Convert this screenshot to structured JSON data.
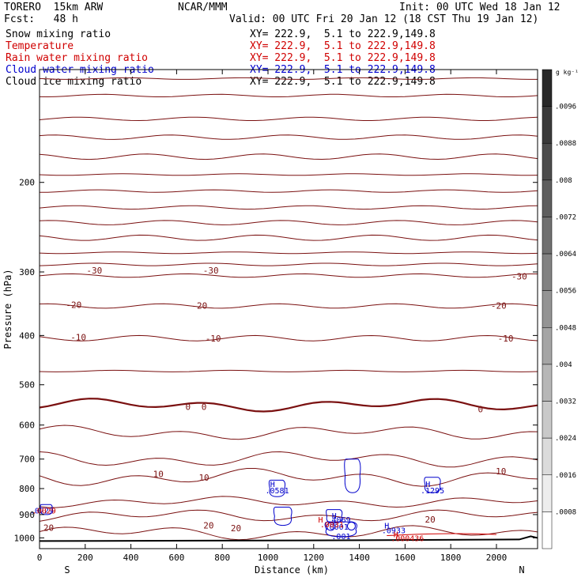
{
  "header": {
    "model": "TORERO  15km ARW",
    "org": "NCAR/MMM",
    "init": "Init: 00 UTC Wed 18 Jan 12",
    "fcst": "Fcst:   48 h",
    "valid": "Valid: 00 UTC Fri 20 Jan 12 (18 CST Thu 19 Jan 12)"
  },
  "fields": [
    {
      "name": "Snow mixing ratio",
      "xy": "XY= 222.9,  5.1 to 222.9,149.8",
      "color": "#000000"
    },
    {
      "name": "Temperature",
      "xy": "XY= 222.9,  5.1 to 222.9,149.8",
      "color": "#d00000"
    },
    {
      "name": "Rain water mixing ratio",
      "xy": "XY= 222.9,  5.1 to 222.9,149.8",
      "color": "#d00000"
    },
    {
      "name": "Cloud water mixing ratio",
      "xy": "XY= 222.9,  5.1 to 222.9,149.8",
      "color": "#0000cc"
    },
    {
      "name": "Cloud ice mixing ratio",
      "xy": "XY= 222.9,  5.1 to 222.9,149.8",
      "color": "#000000"
    }
  ],
  "colorbar": {
    "unit": "g kg⁻¹",
    "labels": [
      ".0096",
      ".0088",
      ".008",
      ".0072",
      ".0064",
      ".0056",
      ".0048",
      ".004",
      ".0032",
      ".0024",
      ".0016",
      ".0008"
    ]
  },
  "chart_data": {
    "type": "contour",
    "xlabel": "Distance (km)",
    "ylabel": "Pressure (hPa)",
    "xlim": [
      0,
      2180
    ],
    "ylim": [
      1050,
      120
    ],
    "y_scale": "log",
    "x_ticks": [
      "0",
      "200",
      "400",
      "600",
      "800",
      "1000",
      "1200",
      "1400",
      "1600",
      "1800",
      "2000"
    ],
    "x_tick_values": [
      0,
      200,
      400,
      600,
      800,
      1000,
      1200,
      1400,
      1600,
      1800,
      2000
    ],
    "y_ticks": [
      "200",
      "300",
      "400",
      "500",
      "600",
      "700",
      "800",
      "900",
      "1000"
    ],
    "y_tick_values": [
      200,
      300,
      400,
      500,
      600,
      700,
      800,
      900,
      1000
    ],
    "x_end_labels": {
      "left": "S",
      "right": "N"
    },
    "isotherm_pressures": [
      125,
      135,
      150,
      163,
      178,
      193,
      208,
      224,
      240,
      257,
      275,
      290,
      305,
      350,
      405,
      470,
      548,
      621,
      700,
      760,
      850,
      905,
      978
    ],
    "temperature_labels": [
      {
        "text": "-30",
        "x": 240,
        "p": 298
      },
      {
        "text": "-30",
        "x": 750,
        "p": 298
      },
      {
        "text": "-30",
        "x": 2100,
        "p": 306
      },
      {
        "text": "-20",
        "x": 150,
        "p": 348
      },
      {
        "text": "-20",
        "x": 700,
        "p": 349
      },
      {
        "text": "-20",
        "x": 2010,
        "p": 349
      },
      {
        "text": "-10",
        "x": 170,
        "p": 403
      },
      {
        "text": "-10",
        "x": 760,
        "p": 405
      },
      {
        "text": "-10",
        "x": 2040,
        "p": 405
      },
      {
        "text": "0",
        "x": 650,
        "p": 552
      },
      {
        "text": "0",
        "x": 720,
        "p": 552
      },
      {
        "text": "0",
        "x": 1930,
        "p": 558
      },
      {
        "text": "10",
        "x": 520,
        "p": 749
      },
      {
        "text": "10",
        "x": 720,
        "p": 761
      },
      {
        "text": "10",
        "x": 2020,
        "p": 740
      },
      {
        "text": "20",
        "x": 40,
        "p": 955
      },
      {
        "text": "20",
        "x": 740,
        "p": 945
      },
      {
        "text": "20",
        "x": 860,
        "p": 956
      },
      {
        "text": "20",
        "x": 1710,
        "p": 920
      }
    ],
    "cloud_water_labels": [
      {
        "text": "H",
        "x": 1020,
        "p": 783
      },
      {
        "text": ".0581",
        "x": 1040,
        "p": 805
      },
      {
        "text": "H",
        "x": 1700,
        "p": 783
      },
      {
        "text": ".1295",
        "x": 1720,
        "p": 805
      },
      {
        "text": "H",
        "x": 1290,
        "p": 903
      },
      {
        "text": ".4069",
        "x": 1310,
        "p": 920
      },
      {
        "text": "H",
        "x": 1520,
        "p": 945
      },
      {
        "text": ".0933",
        "x": 1550,
        "p": 966
      },
      {
        "text": ".001",
        "x": 1320,
        "p": 992
      },
      {
        "text": ".0001",
        "x": 1300,
        "p": 950
      }
    ],
    "rain_labels": [
      {
        "text": "H",
        "x": 1230,
        "p": 920
      },
      {
        "text": ".0031",
        "x": 1280,
        "p": 940
      },
      {
        "text": "H",
        "x": 1560,
        "p": 982
      },
      {
        "text": ".000436",
        "x": 1610,
        "p": 1000
      }
    ],
    "left_edge_labels": [
      {
        "text": ".0729",
        "x": 10,
        "p": 883,
        "color": "#0000cc"
      },
      {
        "text": ".0029",
        "x": 20,
        "p": 883,
        "color": "#d00000"
      }
    ],
    "surface_pressure": 1011
  }
}
